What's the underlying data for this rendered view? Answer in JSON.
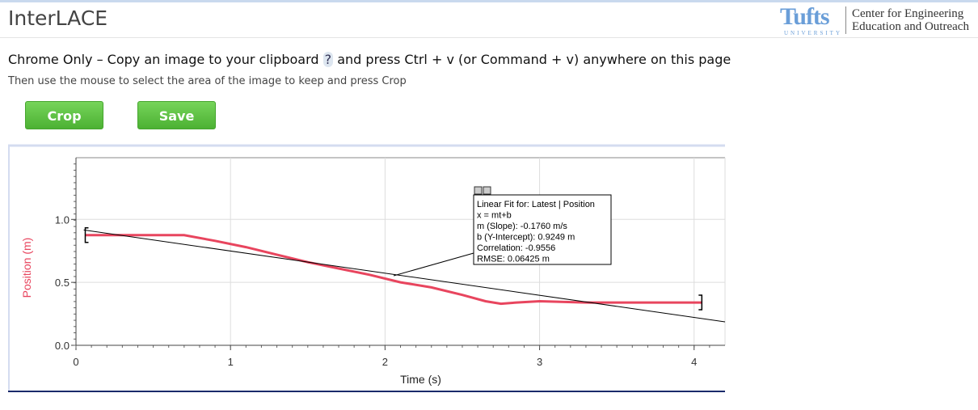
{
  "header": {
    "title": "InterLACE",
    "logo": "Tufts",
    "logo_sub": "UNIVERSITY",
    "org": [
      "Center for Engineering",
      "Education and Outreach"
    ]
  },
  "instructions": {
    "main_before": "Chrome Only – Copy an image to your clipboard",
    "help": "?",
    "main_after": "and press Ctrl + v (or Command + v) anywhere on this page",
    "sub": "Then use the mouse to select the area of the image to keep and press Crop"
  },
  "buttons": [
    "Crop",
    "Save"
  ],
  "chart_data": {
    "type": "line",
    "xlabel": "Time (s)",
    "ylabel": "Position (m)",
    "xlim": [
      0,
      4.2
    ],
    "xticks": [
      0,
      1,
      2,
      3,
      4
    ],
    "ylim": [
      0,
      1.49
    ],
    "yticks": [
      {
        "value": 0,
        "label": "0.0"
      },
      {
        "value": 0.5,
        "label": "0.5"
      },
      {
        "value": 1,
        "label": "1.0"
      }
    ],
    "grid": true,
    "series": [
      {
        "color": "#e8455e",
        "x": [
          0.06,
          0.3,
          0.7,
          0.9,
          1.1,
          1.3,
          1.5,
          1.7,
          1.9,
          2.1,
          2.3,
          2.5,
          2.65,
          2.75,
          2.85,
          3.0,
          3.3,
          3.6,
          4.05
        ],
        "values": [
          0.875,
          0.875,
          0.875,
          0.83,
          0.78,
          0.72,
          0.66,
          0.61,
          0.56,
          0.5,
          0.46,
          0.4,
          0.35,
          0.33,
          0.34,
          0.35,
          0.34,
          0.34,
          0.34
        ]
      },
      {
        "color": "#000000",
        "x": [
          0.05,
          4.2
        ],
        "values": [
          0.916,
          0.186
        ]
      }
    ],
    "annotation": [
      "Linear Fit for: Latest | Position",
      "x = mt+b",
      "m (Slope): -0.1760 m/s",
      "b (Y-Intercept): 0.9249 m",
      "Correlation: -0.9556",
      "RMSE: 0.06425 m"
    ]
  }
}
